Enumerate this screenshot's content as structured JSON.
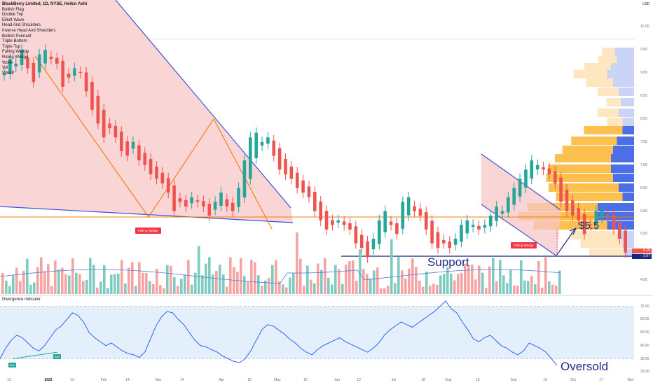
{
  "legend": {
    "title": "BlackBerry Limited, 1D, NYSE, Heikin Ashi",
    "items": [
      "Bullish Flag",
      "Double Top",
      "Elliott Wave",
      "Head And Shoulders",
      "Inverse Head And Shoulders",
      "Bullish Pennant",
      "Triple Bottom",
      "Triple Top",
      "Falling Wedge",
      "Rising Wedge",
      "Wolfe",
      "Vol",
      "VWAP"
    ]
  },
  "currency": "USD",
  "indicator_title": "Divergence Indicator",
  "annotations": {
    "support": "Support",
    "target": "$5.5",
    "oversold": "Oversold",
    "falling_wedge_1": "Falling Wedge",
    "falling_wedge_2": "Falling Wedge",
    "bull_1": "Bull",
    "bull_2": "Bull",
    "price_tag_1": "5.10",
    "price_tag_2": "5.07"
  },
  "colors": {
    "up": "#26a69a",
    "down": "#ef5350",
    "wedge_fill": "#f8c7c7",
    "trend_line": "#3f51d8",
    "zigzag": "#f57c00",
    "support_line": "#1a237e",
    "resistance_line": "#f57c00",
    "rsi_line": "#2962ff",
    "rsi_band": "#e3f0fb"
  },
  "chart_data": [
    {
      "type": "candlestick",
      "title": "BlackBerry Limited, 1D, NYSE, Heikin Ashi",
      "y_ticks": [
        4.5,
        5.0,
        5.5,
        6.0,
        6.5,
        7.0,
        7.5,
        8.0,
        8.5,
        9.0,
        9.5,
        10.0
      ],
      "ylim": [
        4.2,
        10.4
      ],
      "x_ticks": [
        "13",
        "2022",
        "13",
        "Feb",
        "14",
        "Mar",
        "14",
        "Apr",
        "18",
        "May",
        "16",
        "Jun",
        "13",
        "Jul",
        "18",
        "Aug",
        "15",
        "Sep",
        "19",
        "Oct",
        "17",
        "Nov"
      ],
      "close": [
        9.0,
        9.3,
        9.2,
        9.5,
        9.1,
        8.8,
        9.4,
        9.5,
        9.3,
        9.2,
        8.7,
        8.9,
        9.1,
        9.0,
        8.6,
        8.2,
        7.9,
        7.6,
        7.8,
        7.6,
        7.3,
        7.2,
        7.5,
        7.1,
        7.0,
        6.8,
        6.7,
        6.6,
        6.4,
        6.0,
        6.2,
        6.1,
        6.3,
        6.2,
        6.1,
        5.9,
        6.2,
        6.4,
        6.1,
        6.0,
        6.5,
        7.1,
        7.6,
        7.7,
        7.5,
        7.6,
        7.2,
        6.9,
        6.8,
        6.7,
        6.5,
        6.4,
        6.3,
        6.0,
        5.8,
        5.6,
        5.7,
        5.8,
        5.7,
        5.6,
        5.3,
        5.2,
        5.0,
        5.4,
        5.8,
        6.0,
        5.7,
        5.5,
        6.2,
        6.3,
        6.0,
        5.9,
        5.6,
        5.3,
        5.2,
        5.3,
        5.2,
        5.4,
        5.7,
        5.8,
        5.7,
        5.6,
        5.7,
        5.9,
        6.1,
        6.0,
        6.3,
        6.5,
        6.7,
        6.9,
        7.1,
        7.0,
        6.9,
        6.8,
        6.6,
        6.2,
        6.0,
        5.9,
        5.8,
        5.5,
        5.7,
        6.0,
        6.0,
        5.9,
        5.6,
        5.4,
        5.1
      ],
      "volume_shown": true
    },
    {
      "type": "line",
      "title": "Divergence Indicator",
      "y_ticks": [
        20.0,
        30.0,
        40.0,
        50.0,
        60.0,
        70.0
      ],
      "ylim": [
        18,
        74
      ],
      "bands": [
        30,
        70
      ],
      "values": [
        30,
        38,
        44,
        48,
        46,
        42,
        38,
        36,
        40,
        46,
        52,
        55,
        60,
        65,
        63,
        58,
        50,
        46,
        43,
        40,
        42,
        39,
        36,
        34,
        33,
        31,
        35,
        45,
        55,
        62,
        66,
        65,
        60,
        56,
        50,
        44,
        40,
        39,
        37,
        35,
        32,
        30,
        28,
        27,
        30,
        36,
        44,
        52,
        56,
        55,
        52,
        49,
        45,
        42,
        38,
        35,
        33,
        37,
        40,
        42,
        44,
        46,
        43,
        41,
        39,
        37,
        35,
        38,
        42,
        48,
        52,
        55,
        58,
        56,
        54,
        57,
        60,
        63,
        66,
        70,
        74,
        68,
        65,
        58,
        52,
        45,
        43,
        46,
        48,
        44,
        40,
        38,
        35,
        33,
        36,
        42,
        40,
        38,
        35,
        30,
        25
      ]
    }
  ]
}
